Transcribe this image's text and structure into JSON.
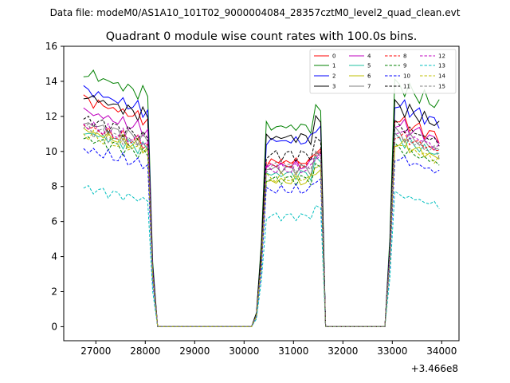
{
  "suptitle": "Data file: modeM0/AS1A10_101T02_9000004084_28357cztM0_level2_quad_clean.evt",
  "offset_label": "+3.466e8",
  "chart_data": {
    "type": "line",
    "title": "Quadrant 0 module wise count rates with 100.0s bins.",
    "xlabel": "",
    "ylabel": "",
    "xlim": [
      26350,
      34350
    ],
    "ylim": [
      -0.8,
      16.0
    ],
    "x_ticks": [
      27000,
      28000,
      29000,
      30000,
      31000,
      32000,
      33000,
      34000
    ],
    "x_tick_labels": [
      "27000",
      "28000",
      "29000",
      "30000",
      "31000",
      "32000",
      "33000",
      "34000"
    ],
    "y_ticks": [
      0,
      2,
      4,
      6,
      8,
      10,
      12,
      14,
      16
    ],
    "y_tick_labels": [
      "0",
      "2",
      "4",
      "6",
      "8",
      "10",
      "12",
      "14",
      "16"
    ],
    "grid": false,
    "legend_position": "top-right",
    "legend_columns": 4,
    "bin_seconds": 100,
    "segment_starts": [
      26750,
      30450,
      33050
    ],
    "segment_ends": [
      28050,
      31550,
      33950
    ],
    "gap_starts": [
      28250,
      31650
    ],
    "gap_ends": [
      30150,
      32950
    ],
    "series": [
      {
        "name": "0",
        "color": "#ff0000",
        "dash": "solid",
        "levels": [
          11.8,
          9.4,
          10.8
        ]
      },
      {
        "name": "1",
        "color": "#008000",
        "dash": "solid",
        "levels": [
          13.2,
          11.4,
          12.6
        ]
      },
      {
        "name": "2",
        "color": "#0000ff",
        "dash": "solid",
        "levels": [
          12.3,
          10.6,
          11.6
        ]
      },
      {
        "name": "3",
        "color": "#000000",
        "dash": "solid",
        "levels": [
          12.0,
          10.8,
          11.5
        ]
      },
      {
        "name": "4",
        "color": "#bf00bf",
        "dash": "solid",
        "levels": [
          11.2,
          9.2,
          10.6
        ]
      },
      {
        "name": "5",
        "color": "#20c0a0",
        "dash": "solid",
        "levels": [
          10.1,
          8.7,
          9.8
        ]
      },
      {
        "name": "6",
        "color": "#bfbf00",
        "dash": "solid",
        "levels": [
          10.2,
          8.3,
          9.6
        ]
      },
      {
        "name": "7",
        "color": "#808080",
        "dash": "solid",
        "levels": [
          10.6,
          9.0,
          10.1
        ]
      },
      {
        "name": "8",
        "color": "#ff0000",
        "dash": "dashed",
        "levels": [
          10.4,
          9.3,
          10.0
        ]
      },
      {
        "name": "9",
        "color": "#008000",
        "dash": "dashed",
        "levels": [
          9.8,
          8.4,
          9.3
        ]
      },
      {
        "name": "10",
        "color": "#0000ff",
        "dash": "dashed",
        "levels": [
          9.2,
          7.8,
          8.8
        ]
      },
      {
        "name": "11",
        "color": "#000000",
        "dash": "dashed",
        "levels": [
          10.8,
          9.8,
          10.5
        ]
      },
      {
        "name": "12",
        "color": "#bf00bf",
        "dash": "dashed",
        "levels": [
          10.5,
          9.0,
          10.2
        ]
      },
      {
        "name": "13",
        "color": "#00bfbf",
        "dash": "dashed",
        "levels": [
          7.2,
          6.3,
          6.9
        ]
      },
      {
        "name": "14",
        "color": "#bfbf00",
        "dash": "dashed",
        "levels": [
          10.0,
          8.5,
          9.5
        ]
      },
      {
        "name": "15",
        "color": "#808080",
        "dash": "dashed",
        "levels": [
          10.3,
          9.1,
          9.9
        ]
      }
    ]
  }
}
